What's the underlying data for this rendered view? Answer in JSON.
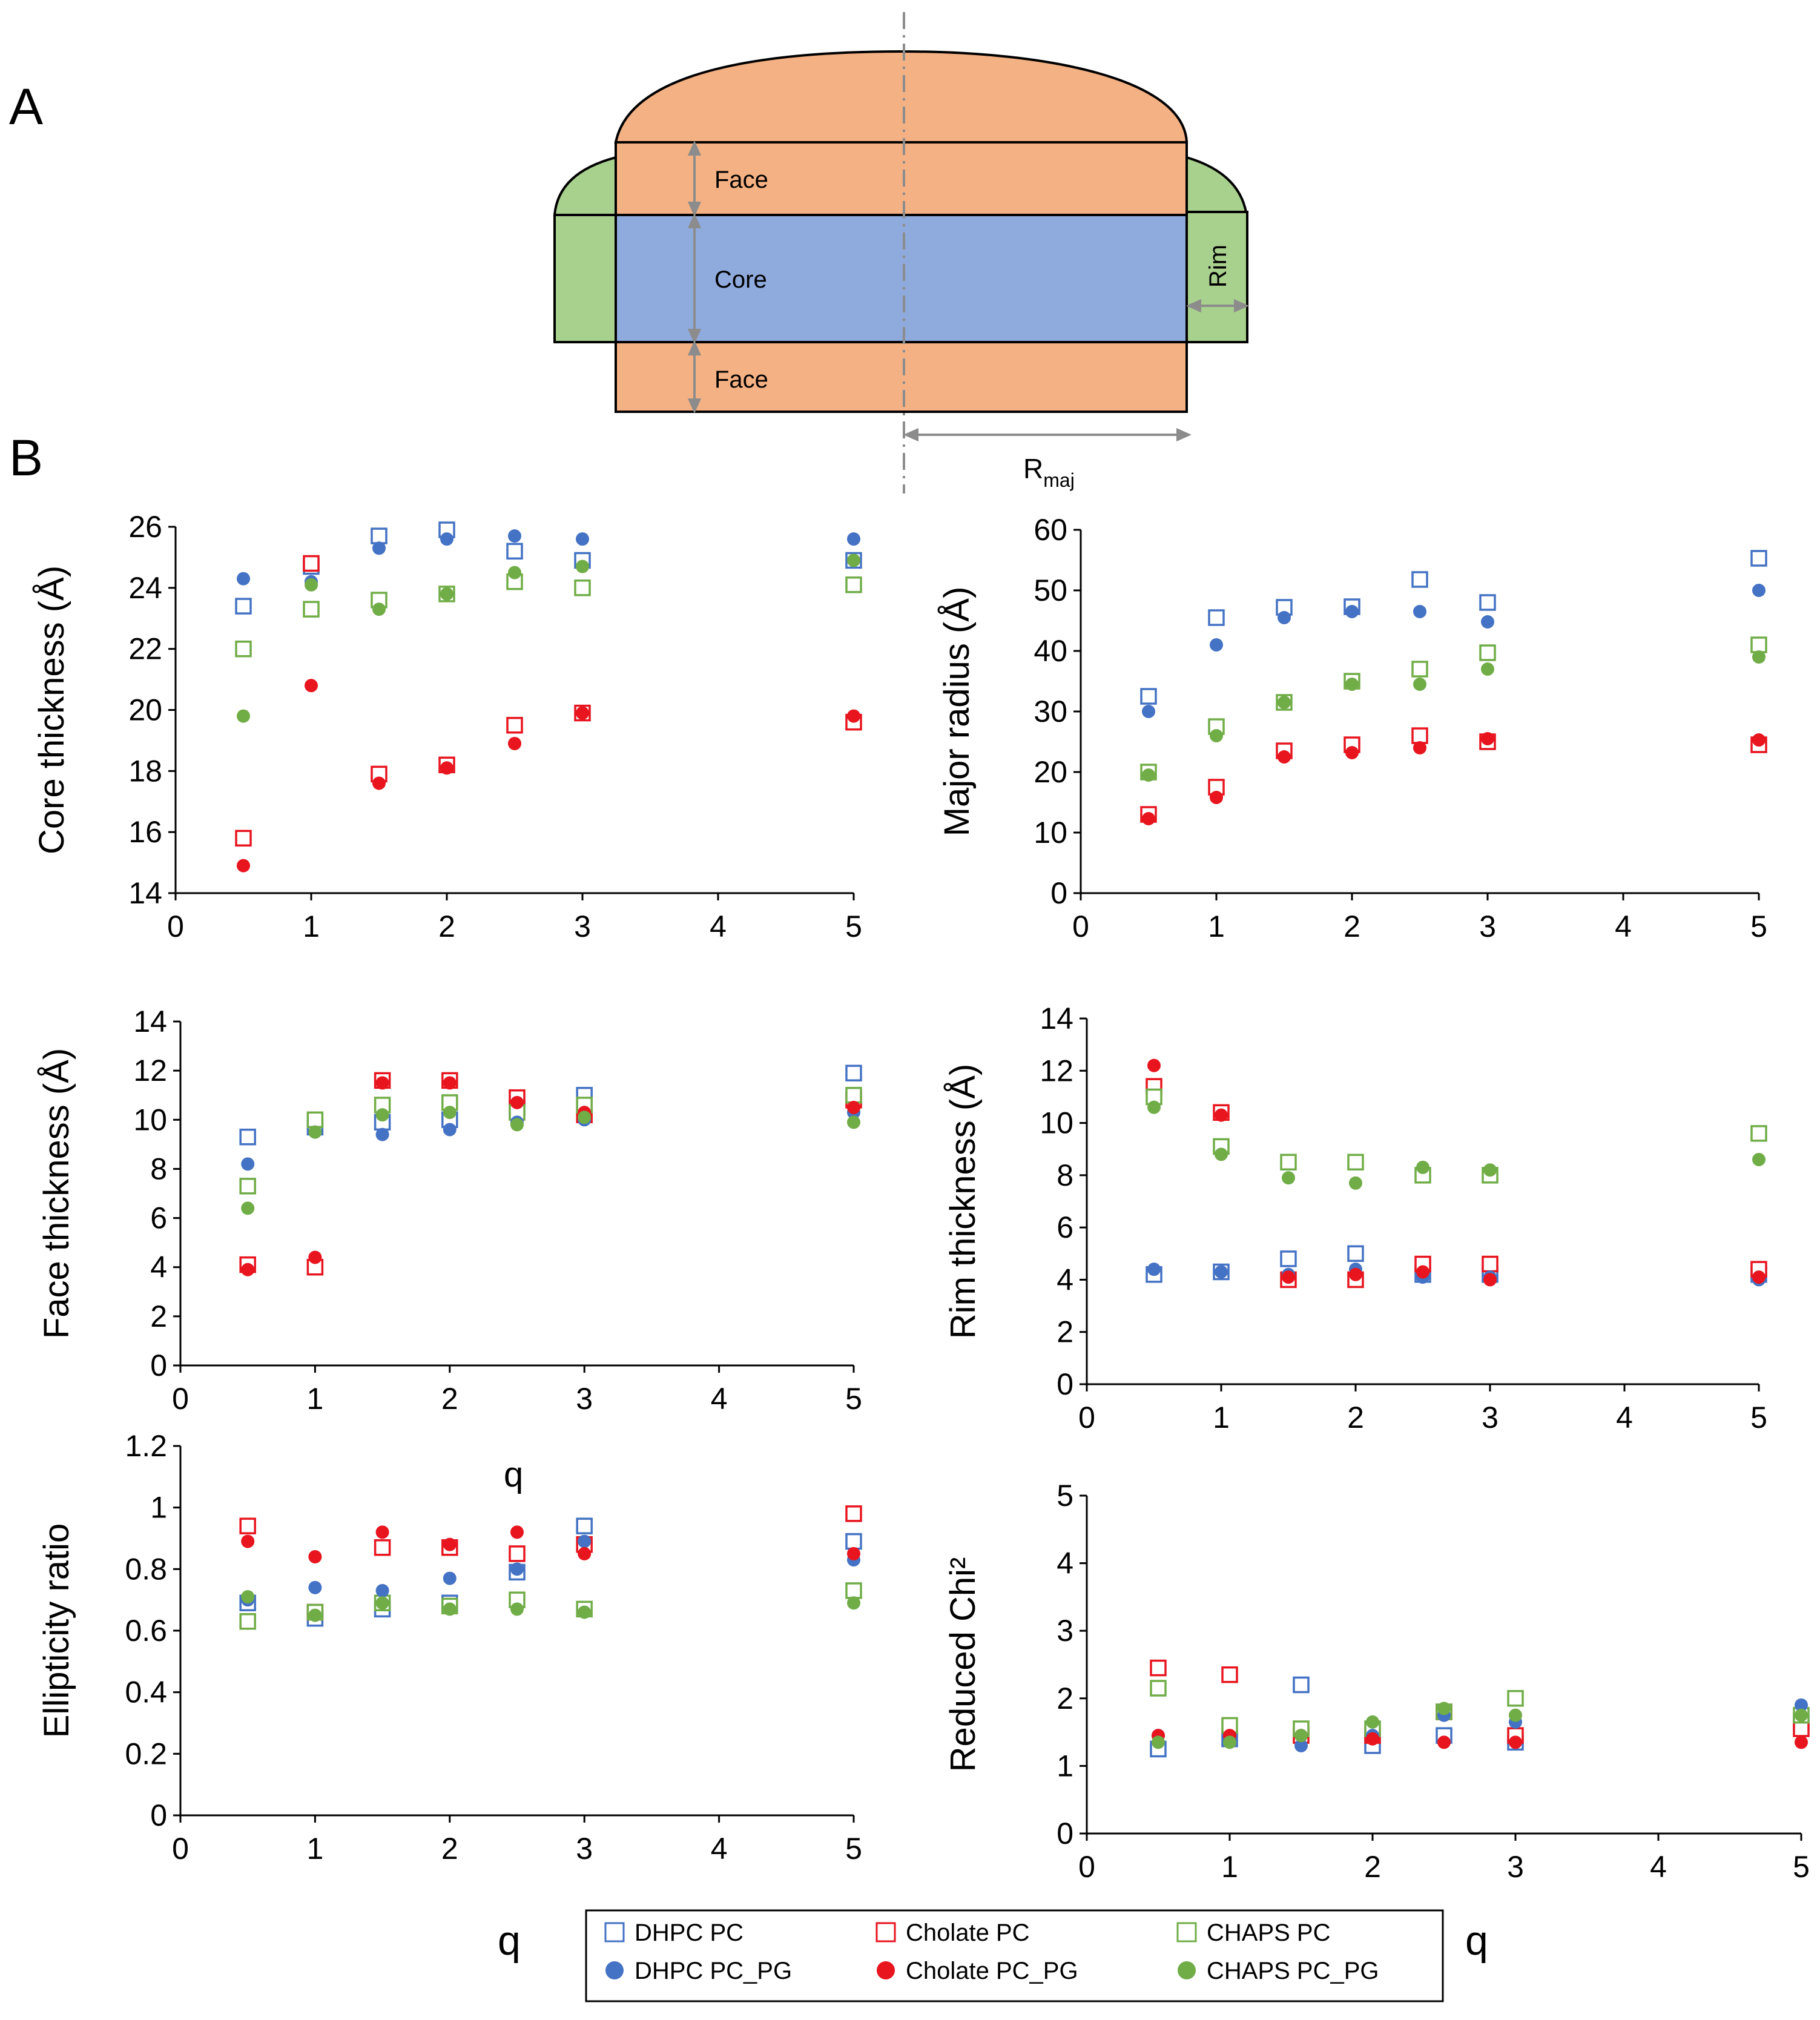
{
  "figure": {
    "panel_a_letter": "A",
    "panel_b_letter": "B",
    "diagram": {
      "face_top_label": "Face",
      "core_label": "Core",
      "face_bottom_label": "Face",
      "rim_label": "Rim",
      "rmaj_label": "R",
      "rmaj_sub": "maj"
    },
    "x_labels": {
      "ellipticity_q": "q",
      "bottom_left_q": "q",
      "bottom_right_q": "q"
    },
    "legend": {
      "entries": [
        {
          "label": "DHPC PC",
          "marker": "open-square",
          "color": "#4472c4"
        },
        {
          "label": "Cholate PC",
          "marker": "open-square",
          "color": "#e8141e"
        },
        {
          "label": "CHAPS PC",
          "marker": "open-square",
          "color": "#70ad47"
        },
        {
          "label": "DHPC PC_PG",
          "marker": "filled-circle",
          "color": "#4472c4"
        },
        {
          "label": "Cholate PC_PG",
          "marker": "filled-circle",
          "color": "#e8141e"
        },
        {
          "label": "CHAPS PC_PG",
          "marker": "filled-circle",
          "color": "#70ad47"
        }
      ]
    },
    "colors": {
      "face": "#f4b183",
      "core": "#8faadc",
      "rim": "#a9d18e",
      "dhpc": "#4472c4",
      "cholate": "#e8141e",
      "chaps": "#70ad47",
      "arrow": "#8c8c8c"
    }
  },
  "chart_data": [
    {
      "type": "scatter",
      "ylabel": "Core thickness (Å)",
      "xlabel": "",
      "xlim": [
        0,
        5
      ],
      "ylim": [
        14,
        26
      ],
      "xticks": [
        "0",
        "1",
        "2",
        "3",
        "4",
        "5"
      ],
      "yticks": [
        "14",
        "16",
        "18",
        "20",
        "22",
        "24",
        "26"
      ],
      "x": [
        0.5,
        1,
        1.5,
        2,
        2.5,
        3,
        5
      ],
      "series": [
        {
          "name": "DHPC PC",
          "values": [
            23.4,
            24.7,
            25.7,
            25.9,
            25.2,
            24.9,
            24.9
          ]
        },
        {
          "name": "Cholate PC",
          "values": [
            15.8,
            24.8,
            17.9,
            18.2,
            19.5,
            19.9,
            19.6
          ]
        },
        {
          "name": "CHAPS PC",
          "values": [
            22.0,
            23.3,
            23.6,
            23.8,
            24.2,
            24.0,
            24.1
          ]
        },
        {
          "name": "DHPC PC_PG",
          "values": [
            24.3,
            24.2,
            25.3,
            25.6,
            25.7,
            25.6,
            25.6
          ]
        },
        {
          "name": "Cholate PC_PG",
          "values": [
            14.9,
            20.8,
            17.6,
            18.1,
            18.9,
            19.9,
            19.8
          ]
        },
        {
          "name": "CHAPS PC_PG",
          "values": [
            19.8,
            24.1,
            23.3,
            23.8,
            24.5,
            24.7,
            24.9
          ]
        }
      ]
    },
    {
      "type": "scatter",
      "ylabel": "Major radius (Å)",
      "xlabel": "",
      "xlim": [
        0,
        5
      ],
      "ylim": [
        0,
        60
      ],
      "xticks": [
        "0",
        "1",
        "2",
        "3",
        "4",
        "5"
      ],
      "yticks": [
        "0",
        "10",
        "20",
        "30",
        "40",
        "50",
        "60"
      ],
      "x": [
        0.5,
        1,
        1.5,
        2,
        2.5,
        3,
        5
      ],
      "series": [
        {
          "name": "DHPC PC",
          "values": [
            32.5,
            45.5,
            47.2,
            47.3,
            51.8,
            48.0,
            55.3
          ]
        },
        {
          "name": "Cholate PC",
          "values": [
            13.0,
            17.5,
            23.5,
            24.5,
            26.0,
            25.0,
            24.5
          ]
        },
        {
          "name": "CHAPS PC",
          "values": [
            20.0,
            27.5,
            31.5,
            35.0,
            37.0,
            39.7,
            41.0
          ]
        },
        {
          "name": "DHPC PC_PG",
          "values": [
            30.0,
            41.0,
            45.5,
            46.5,
            46.5,
            44.8,
            50.0
          ]
        },
        {
          "name": "Cholate PC_PG",
          "values": [
            12.3,
            15.8,
            22.5,
            23.2,
            24.0,
            25.5,
            25.3
          ]
        },
        {
          "name": "CHAPS PC_PG",
          "values": [
            19.5,
            26.0,
            31.5,
            34.5,
            34.5,
            37.0,
            39.0
          ]
        }
      ]
    },
    {
      "type": "scatter",
      "ylabel": "Face thickness (Å)",
      "xlabel": "",
      "xlim": [
        0,
        5
      ],
      "ylim": [
        0,
        14
      ],
      "xticks": [
        "0",
        "1",
        "2",
        "3",
        "4",
        "5"
      ],
      "yticks": [
        "0",
        "2",
        "4",
        "6",
        "8",
        "10",
        "12",
        "14"
      ],
      "x": [
        0.5,
        1,
        1.5,
        2,
        2.5,
        3,
        5
      ],
      "series": [
        {
          "name": "DHPC PC",
          "values": [
            9.3,
            9.7,
            9.9,
            10.0,
            10.5,
            11.0,
            11.9
          ]
        },
        {
          "name": "Cholate PC",
          "values": [
            4.1,
            4.0,
            11.6,
            11.6,
            10.9,
            10.2,
            10.8
          ]
        },
        {
          "name": "CHAPS PC",
          "values": [
            7.3,
            10.0,
            10.6,
            10.7,
            10.3,
            10.6,
            11.0
          ]
        },
        {
          "name": "DHPC PC_PG",
          "values": [
            8.2,
            9.5,
            9.4,
            9.6,
            9.9,
            10.0,
            10.3
          ]
        },
        {
          "name": "Cholate PC_PG",
          "values": [
            3.9,
            4.4,
            11.5,
            11.5,
            10.7,
            10.3,
            10.5
          ]
        },
        {
          "name": "CHAPS PC_PG",
          "values": [
            6.4,
            9.5,
            10.2,
            10.3,
            9.8,
            10.1,
            9.9
          ]
        }
      ]
    },
    {
      "type": "scatter",
      "ylabel": "Rim thickness (Å)",
      "xlabel": "",
      "xlim": [
        0,
        5
      ],
      "ylim": [
        0,
        14
      ],
      "xticks": [
        "0",
        "1",
        "2",
        "3",
        "4",
        "5"
      ],
      "yticks": [
        "0",
        "2",
        "4",
        "6",
        "8",
        "10",
        "12",
        "14"
      ],
      "x": [
        0.5,
        1,
        1.5,
        2,
        2.5,
        3,
        5
      ],
      "series": [
        {
          "name": "DHPC PC",
          "values": [
            4.2,
            4.3,
            4.8,
            5.0,
            4.2,
            4.2,
            4.2
          ]
        },
        {
          "name": "Cholate PC",
          "values": [
            11.4,
            10.4,
            4.0,
            4.0,
            4.6,
            4.6,
            4.4
          ]
        },
        {
          "name": "CHAPS PC",
          "values": [
            11.0,
            9.1,
            8.5,
            8.5,
            8.0,
            8.0,
            9.6
          ]
        },
        {
          "name": "DHPC PC_PG",
          "values": [
            4.4,
            4.3,
            4.2,
            4.4,
            4.1,
            4.1,
            4.0
          ]
        },
        {
          "name": "Cholate PC_PG",
          "values": [
            12.2,
            10.3,
            4.1,
            4.2,
            4.3,
            4.0,
            4.1
          ]
        },
        {
          "name": "CHAPS PC_PG",
          "values": [
            10.6,
            8.8,
            7.9,
            7.7,
            8.3,
            8.2,
            8.6
          ]
        }
      ]
    },
    {
      "type": "scatter",
      "ylabel": "Ellipticity ratio",
      "xlabel": "",
      "xlim": [
        0,
        5
      ],
      "ylim": [
        0,
        1.2
      ],
      "xticks": [
        "0",
        "1",
        "2",
        "3",
        "4",
        "5"
      ],
      "yticks": [
        "0",
        "0.2",
        "0.4",
        "0.6",
        "0.8",
        "1",
        "1.2"
      ],
      "x": [
        0.5,
        1,
        1.5,
        2,
        2.5,
        3,
        5
      ],
      "series": [
        {
          "name": "DHPC PC",
          "values": [
            0.69,
            0.64,
            0.67,
            0.69,
            0.79,
            0.94,
            0.89
          ]
        },
        {
          "name": "Cholate PC",
          "values": [
            0.94,
            0.66,
            0.87,
            0.87,
            0.85,
            0.88,
            0.98
          ]
        },
        {
          "name": "CHAPS PC",
          "values": [
            0.63,
            0.66,
            0.69,
            0.68,
            0.7,
            0.67,
            0.73
          ]
        },
        {
          "name": "DHPC PC_PG",
          "values": [
            0.7,
            0.74,
            0.73,
            0.77,
            0.8,
            0.89,
            0.83
          ]
        },
        {
          "name": "Cholate PC_PG",
          "values": [
            0.89,
            0.84,
            0.92,
            0.88,
            0.92,
            0.85,
            0.85
          ]
        },
        {
          "name": "CHAPS PC_PG",
          "values": [
            0.71,
            0.65,
            0.69,
            0.67,
            0.67,
            0.66,
            0.69
          ]
        }
      ]
    },
    {
      "type": "scatter",
      "ylabel": "Reduced Chi²",
      "xlabel": "",
      "xlim": [
        0,
        5
      ],
      "ylim": [
        0,
        5
      ],
      "xticks": [
        "0",
        "1",
        "2",
        "3",
        "4",
        "5"
      ],
      "yticks": [
        "0",
        "1",
        "2",
        "3",
        "4",
        "5"
      ],
      "x": [
        0.5,
        1,
        1.5,
        2,
        2.5,
        3,
        5
      ],
      "series": [
        {
          "name": "DHPC PC",
          "values": [
            1.25,
            1.4,
            2.2,
            1.3,
            1.45,
            1.35,
            1.65
          ]
        },
        {
          "name": "Cholate PC",
          "values": [
            2.45,
            2.35,
            1.45,
            1.45,
            1.8,
            1.45,
            1.55
          ]
        },
        {
          "name": "CHAPS PC",
          "values": [
            2.15,
            1.6,
            1.55,
            1.55,
            1.8,
            2.0,
            1.75
          ]
        },
        {
          "name": "DHPC PC_PG",
          "values": [
            1.45,
            1.4,
            1.3,
            1.45,
            1.75,
            1.65,
            1.9
          ]
        },
        {
          "name": "Cholate PC_PG",
          "values": [
            1.45,
            1.45,
            1.45,
            1.4,
            1.35,
            1.35,
            1.35
          ]
        },
        {
          "name": "CHAPS PC_PG",
          "values": [
            1.35,
            1.35,
            1.45,
            1.65,
            1.85,
            1.75,
            1.75
          ]
        }
      ]
    }
  ]
}
